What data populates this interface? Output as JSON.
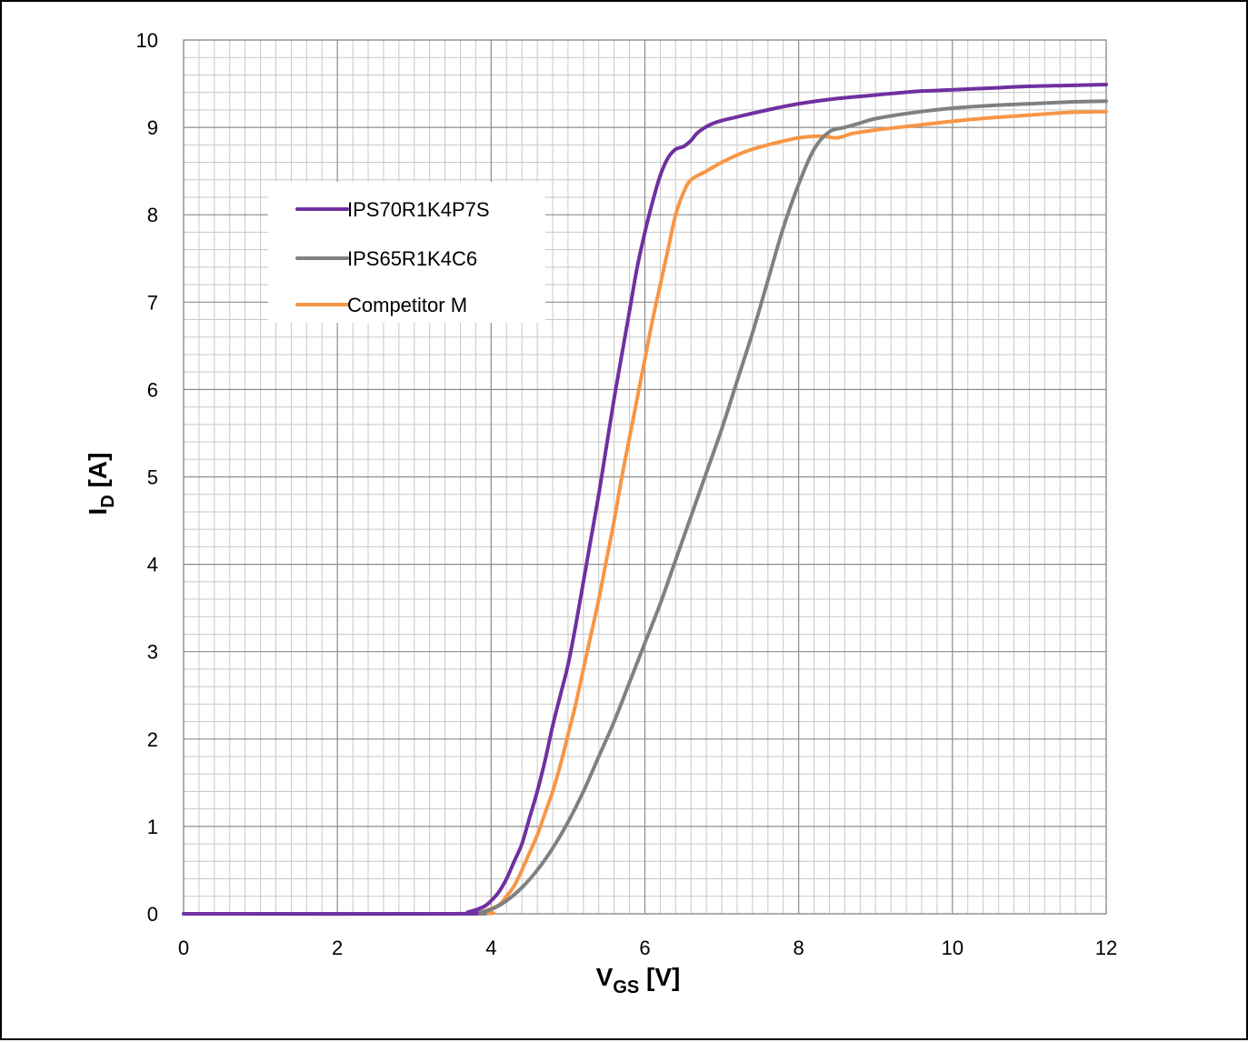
{
  "chart_data": {
    "type": "line",
    "title": "",
    "xlabel": {
      "main": "V",
      "sub": "GS",
      "unit": " [V]"
    },
    "ylabel": {
      "main": "I",
      "sub": "D",
      "unit": " [A]"
    },
    "xlim": [
      0,
      12
    ],
    "ylim": [
      0,
      10
    ],
    "x_ticks": [
      0,
      2,
      4,
      6,
      8,
      10,
      12
    ],
    "y_ticks": [
      0,
      1,
      2,
      3,
      4,
      5,
      6,
      7,
      8,
      9,
      10
    ],
    "x_minor_step": 0.2,
    "y_minor_step": 0.2,
    "grid": true,
    "legend_position": "upper-left",
    "series": [
      {
        "name": "IPS70R1K4P7S",
        "color": "#7030a0",
        "points": [
          [
            0,
            0
          ],
          [
            3.5,
            0
          ],
          [
            3.7,
            0.02
          ],
          [
            3.9,
            0.08
          ],
          [
            4.0,
            0.15
          ],
          [
            4.1,
            0.25
          ],
          [
            4.2,
            0.4
          ],
          [
            4.3,
            0.6
          ],
          [
            4.4,
            0.8
          ],
          [
            4.5,
            1.1
          ],
          [
            4.6,
            1.4
          ],
          [
            4.7,
            1.75
          ],
          [
            4.8,
            2.15
          ],
          [
            4.9,
            2.5
          ],
          [
            5.0,
            2.85
          ],
          [
            5.1,
            3.3
          ],
          [
            5.2,
            3.8
          ],
          [
            5.3,
            4.3
          ],
          [
            5.4,
            4.8
          ],
          [
            5.5,
            5.35
          ],
          [
            5.6,
            5.9
          ],
          [
            5.7,
            6.4
          ],
          [
            5.8,
            6.9
          ],
          [
            5.9,
            7.4
          ],
          [
            6.0,
            7.8
          ],
          [
            6.1,
            8.15
          ],
          [
            6.2,
            8.45
          ],
          [
            6.3,
            8.65
          ],
          [
            6.4,
            8.75
          ],
          [
            6.5,
            8.78
          ],
          [
            6.6,
            8.85
          ],
          [
            6.7,
            8.95
          ],
          [
            6.9,
            9.05
          ],
          [
            7.2,
            9.12
          ],
          [
            7.6,
            9.2
          ],
          [
            8.0,
            9.27
          ],
          [
            8.5,
            9.33
          ],
          [
            9.0,
            9.37
          ],
          [
            9.5,
            9.41
          ],
          [
            10.0,
            9.43
          ],
          [
            10.5,
            9.45
          ],
          [
            11.0,
            9.47
          ],
          [
            11.5,
            9.48
          ],
          [
            12.0,
            9.49
          ]
        ]
      },
      {
        "name": "IPS65R1K4C6",
        "color": "#808080",
        "points": [
          [
            0,
            0
          ],
          [
            3.6,
            0
          ],
          [
            3.8,
            0.01
          ],
          [
            4.0,
            0.05
          ],
          [
            4.2,
            0.15
          ],
          [
            4.4,
            0.3
          ],
          [
            4.6,
            0.5
          ],
          [
            4.8,
            0.75
          ],
          [
            5.0,
            1.05
          ],
          [
            5.2,
            1.4
          ],
          [
            5.4,
            1.8
          ],
          [
            5.6,
            2.2
          ],
          [
            5.8,
            2.65
          ],
          [
            6.0,
            3.1
          ],
          [
            6.2,
            3.55
          ],
          [
            6.4,
            4.05
          ],
          [
            6.6,
            4.55
          ],
          [
            6.8,
            5.05
          ],
          [
            7.0,
            5.55
          ],
          [
            7.2,
            6.1
          ],
          [
            7.4,
            6.65
          ],
          [
            7.6,
            7.25
          ],
          [
            7.8,
            7.85
          ],
          [
            8.0,
            8.35
          ],
          [
            8.2,
            8.75
          ],
          [
            8.4,
            8.95
          ],
          [
            8.6,
            9.0
          ],
          [
            8.8,
            9.05
          ],
          [
            9.0,
            9.1
          ],
          [
            9.5,
            9.17
          ],
          [
            10.0,
            9.22
          ],
          [
            10.5,
            9.25
          ],
          [
            11.0,
            9.27
          ],
          [
            11.5,
            9.29
          ],
          [
            12.0,
            9.3
          ]
        ]
      },
      {
        "name": "Competitor M",
        "color": "#f79646",
        "points": [
          [
            0,
            0
          ],
          [
            3.7,
            0
          ],
          [
            3.9,
            0.03
          ],
          [
            4.1,
            0.1
          ],
          [
            4.2,
            0.2
          ],
          [
            4.3,
            0.32
          ],
          [
            4.4,
            0.5
          ],
          [
            4.5,
            0.7
          ],
          [
            4.6,
            0.9
          ],
          [
            4.7,
            1.15
          ],
          [
            4.8,
            1.4
          ],
          [
            4.9,
            1.7
          ],
          [
            5.0,
            2.05
          ],
          [
            5.1,
            2.4
          ],
          [
            5.2,
            2.8
          ],
          [
            5.3,
            3.2
          ],
          [
            5.4,
            3.6
          ],
          [
            5.5,
            4.05
          ],
          [
            5.6,
            4.5
          ],
          [
            5.7,
            5.0
          ],
          [
            5.8,
            5.45
          ],
          [
            5.9,
            5.9
          ],
          [
            6.0,
            6.35
          ],
          [
            6.1,
            6.8
          ],
          [
            6.2,
            7.2
          ],
          [
            6.3,
            7.6
          ],
          [
            6.4,
            8.0
          ],
          [
            6.5,
            8.25
          ],
          [
            6.6,
            8.4
          ],
          [
            6.8,
            8.5
          ],
          [
            7.0,
            8.6
          ],
          [
            7.3,
            8.72
          ],
          [
            7.6,
            8.8
          ],
          [
            8.0,
            8.88
          ],
          [
            8.3,
            8.9
          ],
          [
            8.5,
            8.88
          ],
          [
            8.7,
            8.93
          ],
          [
            9.0,
            8.97
          ],
          [
            9.5,
            9.02
          ],
          [
            10.0,
            9.07
          ],
          [
            10.5,
            9.11
          ],
          [
            11.0,
            9.14
          ],
          [
            11.5,
            9.17
          ],
          [
            12.0,
            9.18
          ]
        ]
      }
    ]
  }
}
